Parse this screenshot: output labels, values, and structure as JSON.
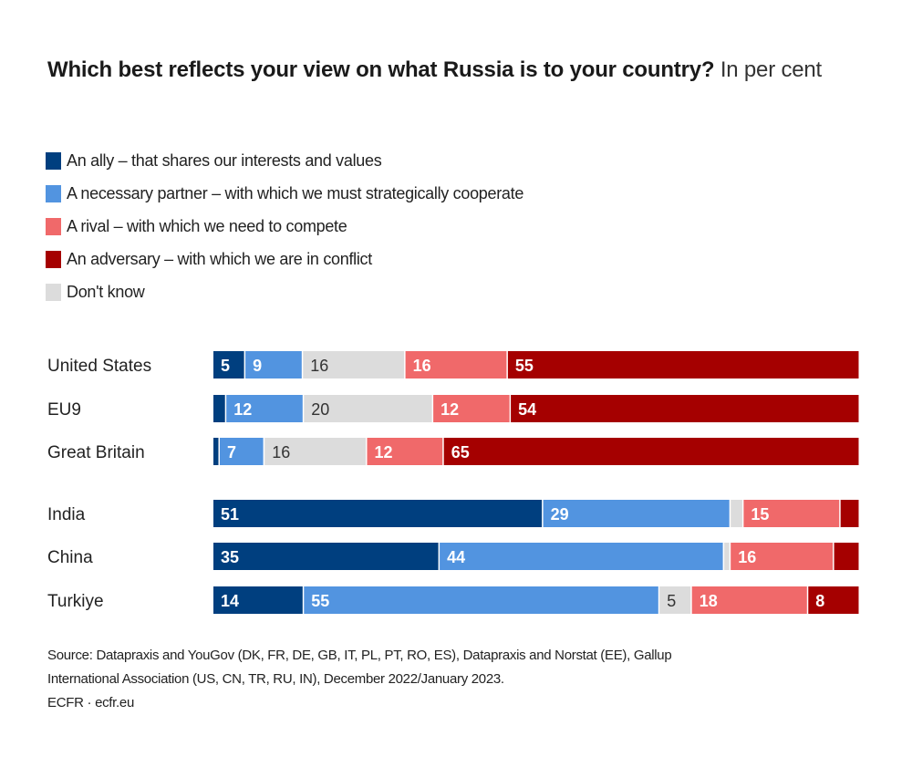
{
  "chart_data": {
    "type": "bar",
    "orientation": "horizontal",
    "stacked": true,
    "title": "Which best reflects your view on what Russia is to your country?",
    "subtitle": "In per cent",
    "xlabel": "",
    "ylabel": "",
    "xlim": [
      0,
      100
    ],
    "grid": false,
    "legend_position": "top-left",
    "categories": [
      "United States",
      "EU9",
      "Great Britain",
      "India",
      "China",
      "Turkiye"
    ],
    "groups": [
      [
        0,
        1,
        2
      ],
      [
        3,
        4,
        5
      ]
    ],
    "series": [
      {
        "name": "An ally – that shares our interests and values",
        "color": "#003f7f",
        "label_color": "#ffffff",
        "values": [
          5,
          2,
          1,
          51,
          35,
          14
        ],
        "labels": [
          "5",
          "",
          "",
          "51",
          "35",
          "14"
        ]
      },
      {
        "name": "A necessary partner – with which we must strategically cooperate",
        "color": "#5294e0",
        "label_color": "#ffffff",
        "values": [
          9,
          12,
          7,
          29,
          44,
          55
        ],
        "labels": [
          "9",
          "12",
          "7",
          "29",
          "44",
          "55"
        ]
      },
      {
        "name": "Don't know",
        "color": "#dcdcdc",
        "label_color": "#333333",
        "values": [
          16,
          20,
          16,
          2,
          1,
          5
        ],
        "labels": [
          "16",
          "20",
          "16",
          "",
          "",
          "5"
        ]
      },
      {
        "name": "A rival – with which we need to compete",
        "color": "#f0696a",
        "label_color": "#ffffff",
        "values": [
          16,
          12,
          12,
          15,
          16,
          18
        ],
        "labels": [
          "16",
          "12",
          "12",
          "15",
          "16",
          "18"
        ]
      },
      {
        "name": "An adversary – with which we are in conflict",
        "color": "#a50000",
        "label_color": "#ffffff",
        "values": [
          55,
          54,
          65,
          3,
          4,
          8
        ],
        "labels": [
          "55",
          "54",
          "65",
          "",
          "",
          "8"
        ]
      }
    ]
  },
  "legend": [
    {
      "label": "An ally – that shares our interests and values",
      "color": "#003f7f"
    },
    {
      "label": "A necessary partner – with which we must strategically cooperate",
      "color": "#5294e0"
    },
    {
      "label": "A rival – with which we need to compete",
      "color": "#f0696a"
    },
    {
      "label": "An adversary – with which we are in conflict",
      "color": "#a50000"
    },
    {
      "label": "Don't know",
      "color": "#dcdcdc"
    }
  ],
  "header": {
    "title": "Which best reflects your view on what Russia is to your country?",
    "subtitle": "In per cent"
  },
  "footer": {
    "source_line1": "Source: Datapraxis and YouGov (DK, FR, DE, GB, IT, PL, PT, RO, ES), Datapraxis and Norstat (EE), Gallup",
    "source_line2": "International Association (US, CN, TR, RU, IN), December 2022/January 2023.",
    "credit": "ECFR · ecfr.eu"
  }
}
